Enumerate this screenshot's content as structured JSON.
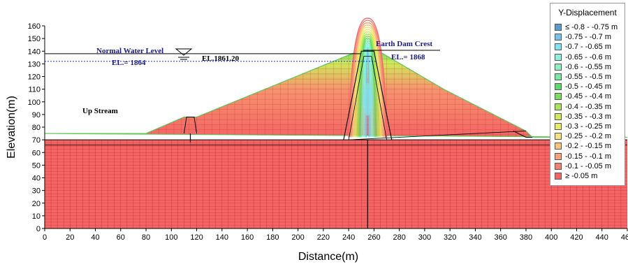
{
  "chart_data": {
    "type": "contour",
    "xlabel": "Distance(m)",
    "ylabel": "Elevation(m)",
    "xlim": [
      0,
      460
    ],
    "ylim": [
      0,
      160
    ],
    "x_ticks": [
      0,
      20,
      40,
      60,
      80,
      100,
      120,
      140,
      160,
      180,
      200,
      220,
      240,
      260,
      280,
      300,
      320,
      340,
      360,
      380,
      400,
      420,
      440,
      460
    ],
    "y_ticks": [
      0,
      10,
      20,
      30,
      40,
      50,
      60,
      70,
      80,
      90,
      100,
      110,
      120,
      130,
      140,
      150,
      160
    ],
    "x_tick_labels": [
      "0",
      "20",
      "40",
      "60",
      "80",
      "100",
      "120",
      "140",
      "160",
      "180",
      "200",
      "220",
      "240",
      "260",
      "280",
      "300",
      "320",
      "340",
      "360",
      "380",
      "400",
      "420",
      "440",
      "460"
    ],
    "y_tick_labels": [
      "0",
      "10",
      "20",
      "30",
      "40",
      "50",
      "60",
      "70",
      "80",
      "90",
      "100",
      "110",
      "120",
      "130",
      "140",
      "150",
      "160"
    ],
    "dam_profile": {
      "x": [
        0,
        80,
        110,
        120,
        250,
        262,
        315,
        380,
        385,
        460
      ],
      "y": [
        75,
        75,
        88,
        88,
        141,
        141,
        110,
        77,
        72,
        72
      ]
    },
    "foundation_top": 70,
    "core_x_center": 255,
    "core_bottom_halfwidth": 15,
    "core_top_halfwidth": 5,
    "core_contour_levels": [
      -0.75,
      -0.7,
      -0.65,
      -0.6,
      -0.55,
      -0.5,
      -0.45,
      -0.4,
      -0.35,
      -0.3,
      -0.25,
      -0.2,
      -0.15,
      -0.1,
      -0.05
    ],
    "normal_water_level_y": 132,
    "reference_line_y": 138,
    "legend": {
      "title": "Y-Displacement",
      "items": [
        {
          "label": "≤ -0.8 - -0.75 m",
          "color": "#5b9bd5"
        },
        {
          "label": "-0.75 - -0.7 m",
          "color": "#6fc3ec"
        },
        {
          "label": "-0.7 - -0.65 m",
          "color": "#7fe5ec"
        },
        {
          "label": "-0.65 - -0.6 m",
          "color": "#8ff0dd"
        },
        {
          "label": "-0.6 - -0.55 m",
          "color": "#8df0c1"
        },
        {
          "label": "-0.55 - -0.5 m",
          "color": "#7ae8a2"
        },
        {
          "label": "-0.5 - -0.45 m",
          "color": "#5fd96a"
        },
        {
          "label": "-0.45 - -0.4 m",
          "color": "#7ede5a"
        },
        {
          "label": "-0.4 - -0.35 m",
          "color": "#a9e65a"
        },
        {
          "label": "-0.35 - -0.3 m",
          "color": "#cdea5b"
        },
        {
          "label": "-0.3 - -0.25 m",
          "color": "#e9ec63"
        },
        {
          "label": "-0.25 - -0.2 m",
          "color": "#f7e37a"
        },
        {
          "label": "-0.2 - -0.15 m",
          "color": "#f8c27b"
        },
        {
          "label": "-0.15 - -0.1 m",
          "color": "#f6a27a"
        },
        {
          "label": "-0.1 - -0.05 m",
          "color": "#f58173"
        },
        {
          "label": "≥ -0.05 m",
          "color": "#f46565"
        }
      ]
    },
    "annotations": {
      "normal_water_level": "Normal Water Level",
      "el_1864": "EL.= 1864",
      "el_1861": "EL.1861.20",
      "earth_dam_crest": "Earth Dam Crest",
      "el_1868": "EL.= 1868",
      "up_stream": "Up Stream"
    },
    "colors": {
      "base_fill": "#f46565",
      "grid_line": "#b01515",
      "outline": "#000000",
      "water_line": "#2a2aff"
    }
  }
}
